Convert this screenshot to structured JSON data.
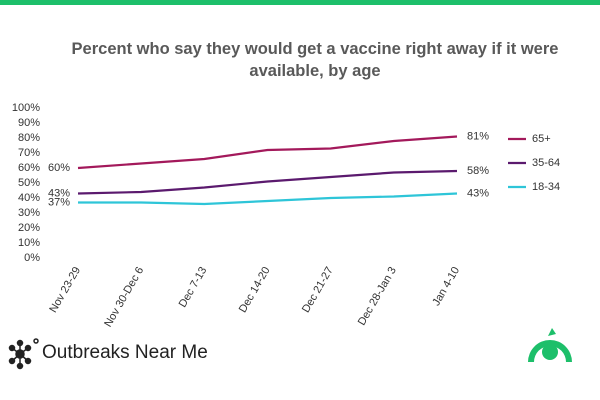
{
  "chart_data": {
    "type": "line",
    "title": "Percent who say they would get a vaccine right away if it were available, by age",
    "categories": [
      "Nov 23-29",
      "Nov 30-Dec 6",
      "Dec 7-13",
      "Dec 14-20",
      "Dec 21-27",
      "Dec 28-Jan 3",
      "Jan 4-10"
    ],
    "series": [
      {
        "name": "65+",
        "color": "#a3195b",
        "values": [
          60,
          63,
          66,
          72,
          73,
          78,
          81
        ],
        "value_labels": [
          "60%",
          null,
          null,
          null,
          null,
          null,
          "81%"
        ]
      },
      {
        "name": "35-64",
        "color": "#5b1a6e",
        "values": [
          43,
          44,
          47,
          51,
          54,
          57,
          58
        ],
        "value_labels": [
          "43%",
          null,
          null,
          null,
          null,
          null,
          "58%"
        ]
      },
      {
        "name": "18-34",
        "color": "#2ec5d8",
        "values": [
          37,
          37,
          36,
          38,
          40,
          41,
          43
        ],
        "value_labels": [
          "37%",
          null,
          null,
          null,
          null,
          null,
          "43%"
        ]
      }
    ],
    "ylim": [
      0,
      100
    ],
    "yticks": [
      {
        "value": 0,
        "label": "0%"
      },
      {
        "value": 10,
        "label": "10%"
      },
      {
        "value": 20,
        "label": "20%"
      },
      {
        "value": 30,
        "label": "30%"
      },
      {
        "value": 40,
        "label": "40%"
      },
      {
        "value": 50,
        "label": "50%"
      },
      {
        "value": 60,
        "label": "60%"
      },
      {
        "value": 70,
        "label": "70%"
      },
      {
        "value": 80,
        "label": "80%"
      },
      {
        "value": 90,
        "label": "90%"
      },
      {
        "value": 100,
        "label": "100%"
      }
    ],
    "legend": "right"
  },
  "footer": {
    "brand": "Outbreaks Near Me"
  }
}
